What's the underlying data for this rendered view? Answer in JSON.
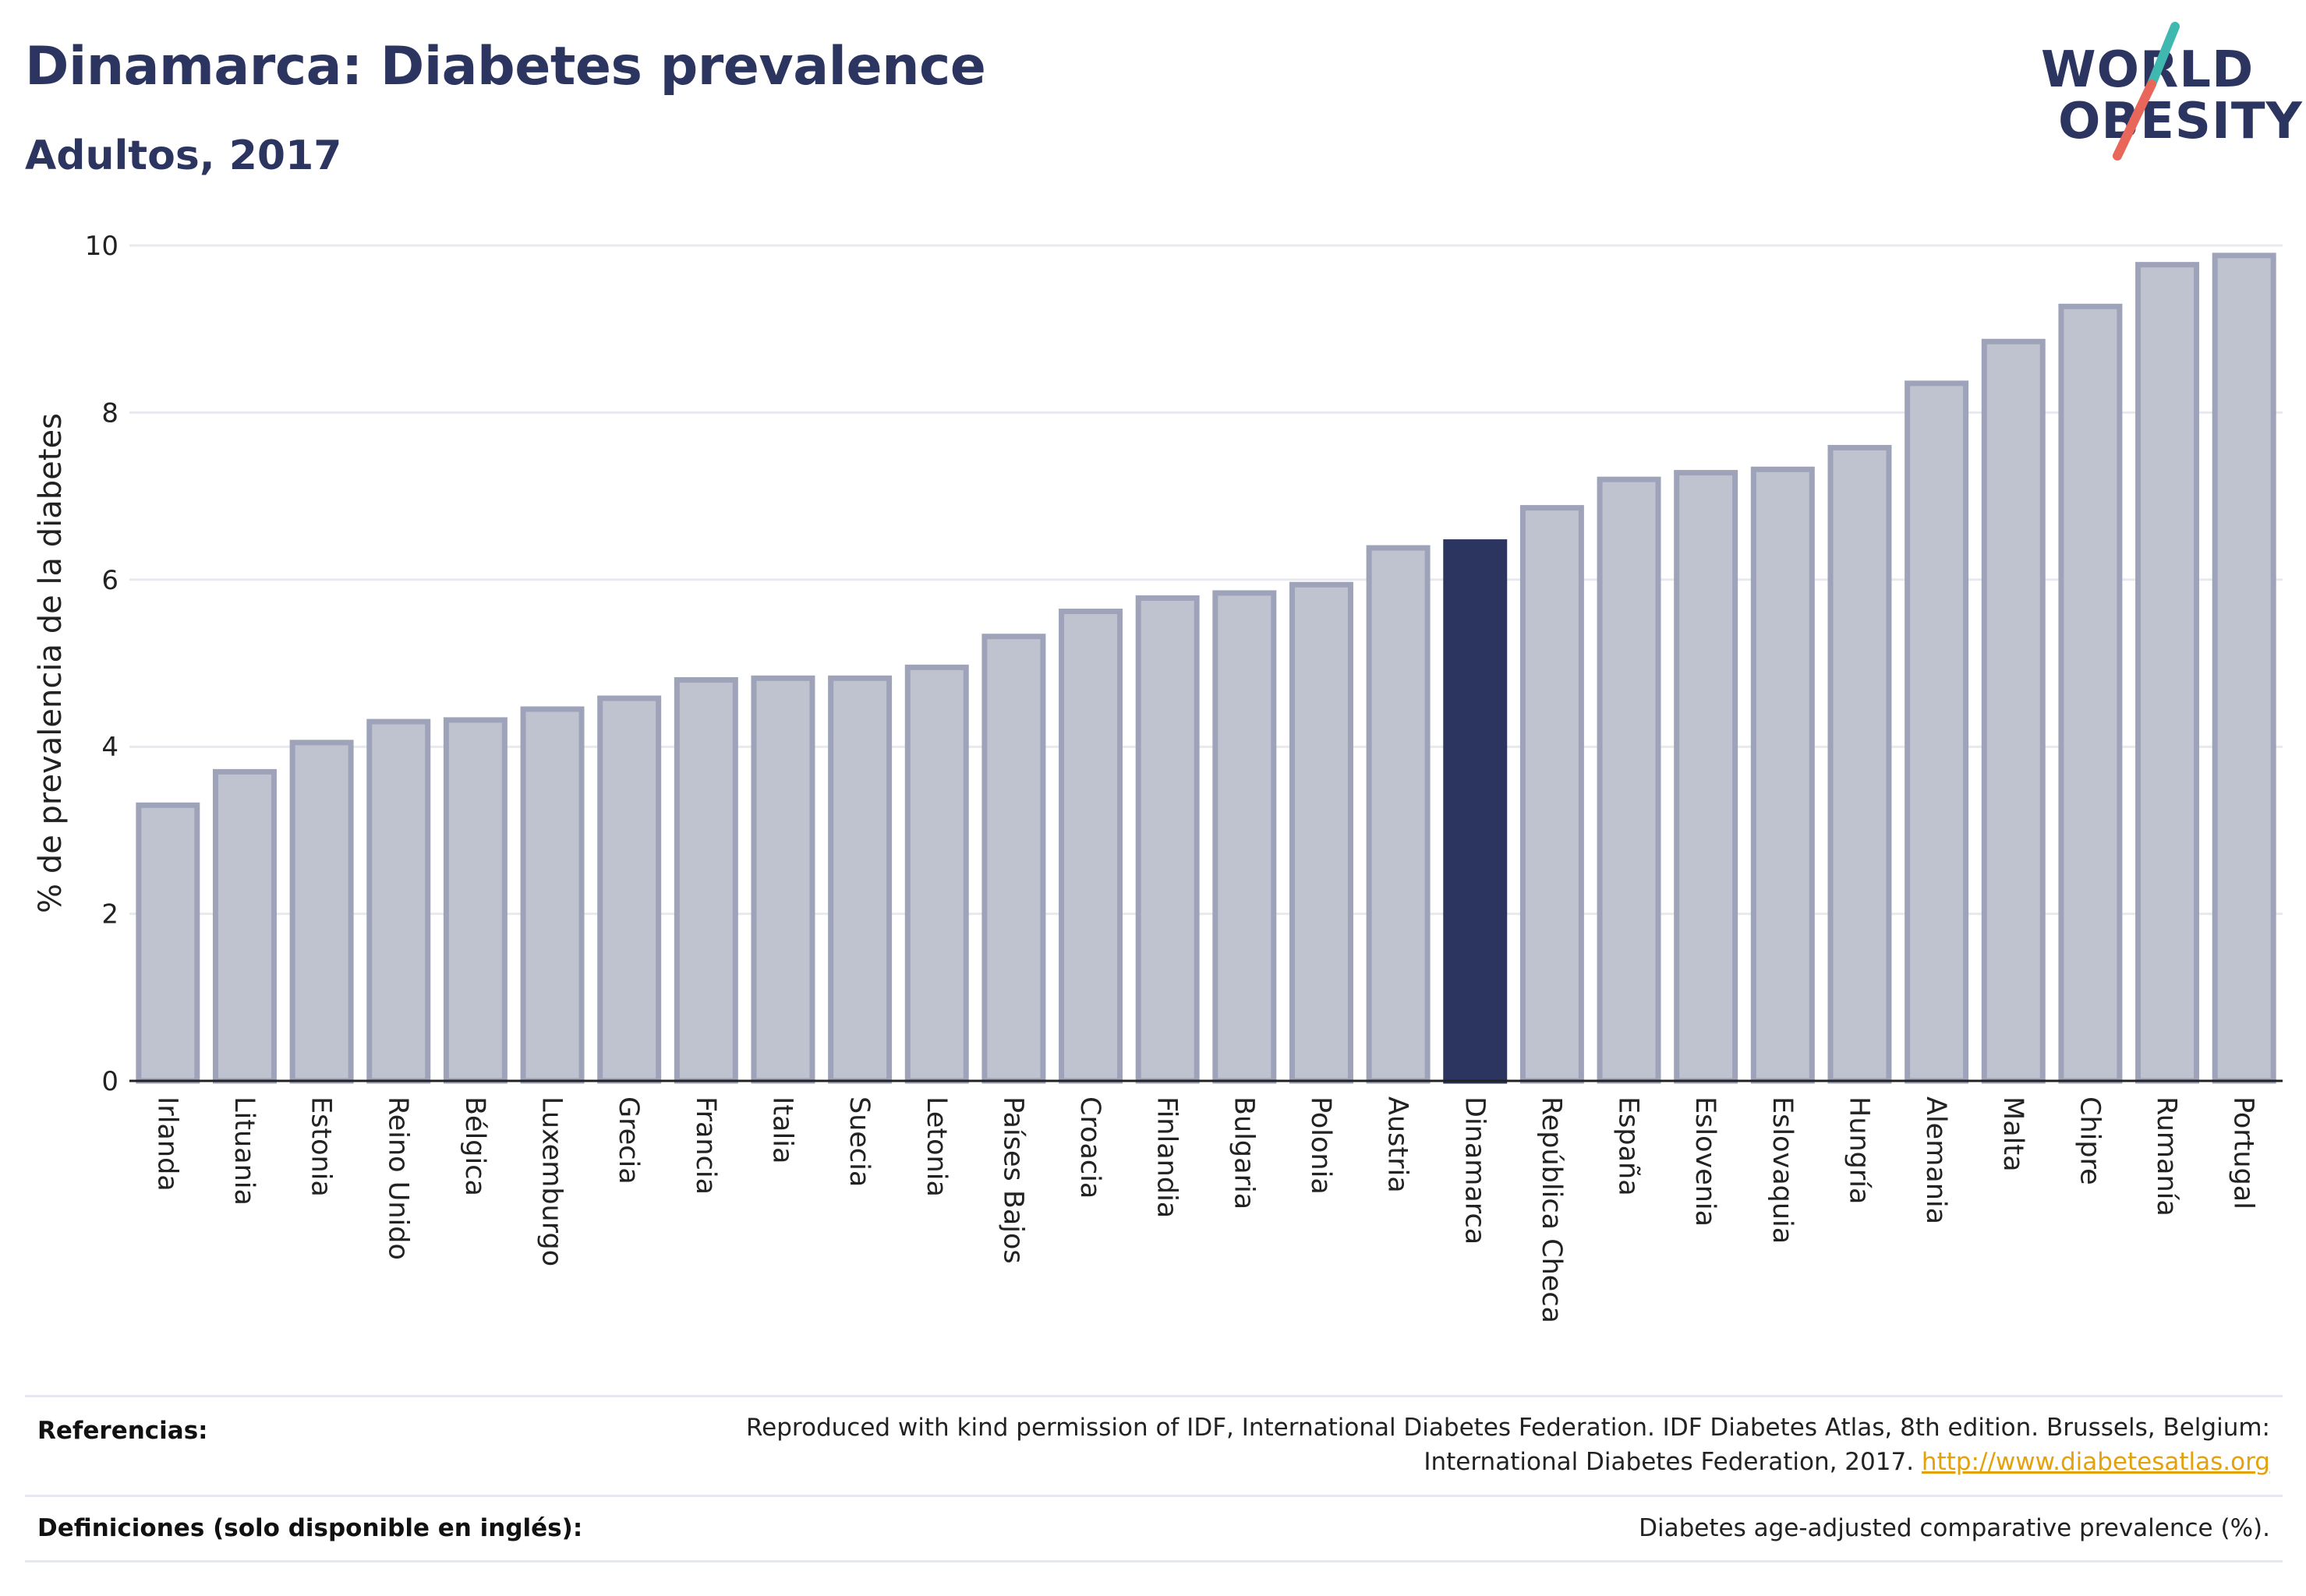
{
  "header": {
    "title": "Dinamarca: Diabetes prevalence",
    "subtitle": "Adultos, 2017"
  },
  "logo": {
    "line1": "WORLD",
    "line2": "OBESITY",
    "accent_colors": [
      "#3fb8b0",
      "#e8675a"
    ]
  },
  "chart_data": {
    "type": "bar",
    "ylabel": "% de prevalencia de la diabetes",
    "ylim": [
      0,
      10
    ],
    "yticks": [
      0,
      2,
      4,
      6,
      8,
      10
    ],
    "grid": true,
    "categories": [
      "Irlanda",
      "Lituania",
      "Estonia",
      "Reino Unido",
      "Bélgica",
      "Luxemburgo",
      "Grecia",
      "Francia",
      "Italia",
      "Suecia",
      "Letonia",
      "Países Bajos",
      "Croacia",
      "Finlandia",
      "Bulgaria",
      "Polonia",
      "Austria",
      "Dinamarca",
      "República Checa",
      "España",
      "Eslovenia",
      "Eslovaquia",
      "Hungría",
      "Alemania",
      "Malta",
      "Chipre",
      "Rumanía",
      "Portugal"
    ],
    "values": [
      3.3,
      3.7,
      4.05,
      4.3,
      4.32,
      4.45,
      4.58,
      4.8,
      4.82,
      4.82,
      4.95,
      5.32,
      5.62,
      5.78,
      5.84,
      5.94,
      6.38,
      6.45,
      6.86,
      7.2,
      7.28,
      7.32,
      7.58,
      8.35,
      8.85,
      9.27,
      9.77,
      9.88
    ],
    "highlight": "Dinamarca",
    "colors": {
      "bar_fill": "#bfc3cf",
      "bar_stroke": "#9ea3ba",
      "highlight_fill": "#2b3560"
    }
  },
  "footer": {
    "references_label": "Referencias:",
    "references_text_line1": "Reproduced with kind permission of IDF, International Diabetes Federation. IDF Diabetes Atlas, 8th edition. Brussels, Belgium:",
    "references_text_line2": "International Diabetes Federation, 2017.",
    "references_link": "http://www.diabetesatlas.org",
    "definitions_label": "Definiciones (solo disponible en inglés):",
    "definitions_text": "Diabetes age-adjusted comparative prevalence (%)."
  }
}
